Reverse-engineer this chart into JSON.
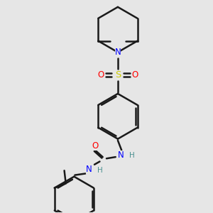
{
  "background_color": "#e6e6e6",
  "bond_color": "#1a1a1a",
  "bond_width": 1.8,
  "N_color": "#0000ff",
  "O_color": "#ff0000",
  "S_color": "#cccc00",
  "H_color": "#4a9090",
  "figsize": [
    3.0,
    3.0
  ],
  "dpi": 100,
  "xlim": [
    0.3,
    2.7
  ],
  "ylim": [
    0.1,
    2.9
  ]
}
